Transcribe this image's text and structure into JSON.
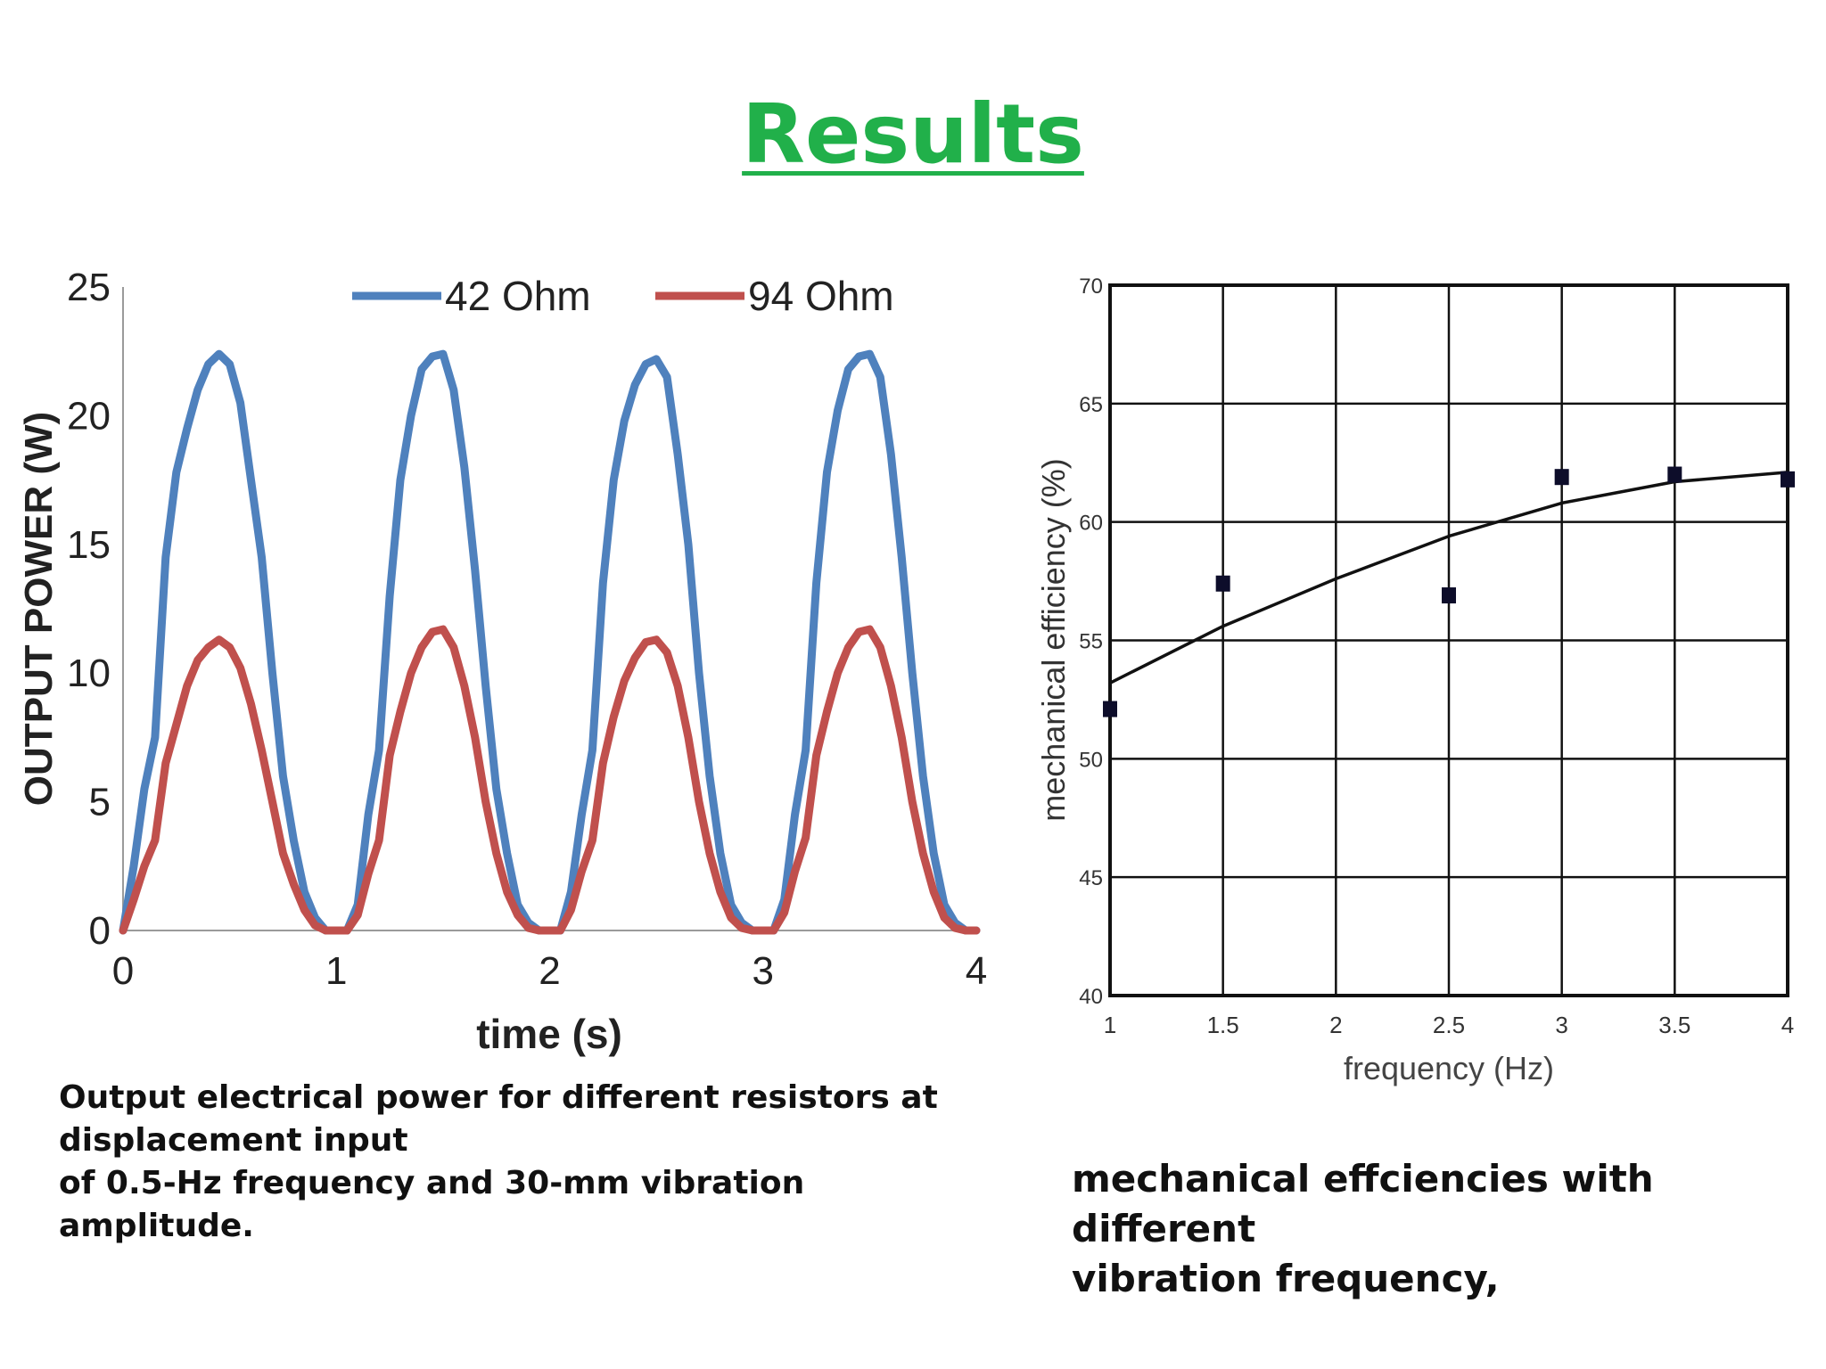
{
  "title": "Results",
  "captions": {
    "left": [
      "Output electrical power for different resistors at",
      "displacement input",
      "of 0.5-Hz frequency and 30-mm vibration",
      "amplitude."
    ],
    "right": [
      "mechanical effciencies with different",
      "vibration frequency,"
    ]
  },
  "chart_data": [
    {
      "type": "line",
      "title": "",
      "xlabel": "time (s)",
      "ylabel": "OUTPUT POWER (W)",
      "xlim": [
        0,
        4
      ],
      "ylim": [
        0,
        25
      ],
      "xticks": [
        "0",
        "1",
        "2",
        "3",
        "4"
      ],
      "yticks": [
        "0",
        "5",
        "10",
        "15",
        "20",
        "25"
      ],
      "grid": false,
      "legend": "top",
      "x": [
        0,
        0.05,
        0.1,
        0.15,
        0.2,
        0.25,
        0.3,
        0.35,
        0.4,
        0.45,
        0.5,
        0.55,
        0.6,
        0.65,
        0.7,
        0.75,
        0.8,
        0.85,
        0.9,
        0.95,
        1.0,
        1.05,
        1.1,
        1.15,
        1.2,
        1.25,
        1.3,
        1.35,
        1.4,
        1.45,
        1.5,
        1.55,
        1.6,
        1.65,
        1.7,
        1.75,
        1.8,
        1.85,
        1.9,
        1.95,
        2.0,
        2.05,
        2.1,
        2.15,
        2.2,
        2.25,
        2.3,
        2.35,
        2.4,
        2.45,
        2.5,
        2.55,
        2.6,
        2.65,
        2.7,
        2.75,
        2.8,
        2.85,
        2.9,
        2.95,
        3.0,
        3.05,
        3.1,
        3.15,
        3.2,
        3.25,
        3.3,
        3.35,
        3.4,
        3.45,
        3.5,
        3.55,
        3.6,
        3.65,
        3.7,
        3.75,
        3.8,
        3.85,
        3.9,
        3.95,
        4.0
      ],
      "series": [
        {
          "name": "42 Ohm",
          "color": "#4f81bd",
          "values": [
            0.0,
            2.5,
            5.5,
            7.5,
            14.5,
            17.8,
            19.5,
            21.0,
            22.0,
            22.4,
            22.0,
            20.5,
            17.5,
            14.5,
            10.0,
            6.0,
            3.5,
            1.5,
            0.5,
            0.0,
            0.0,
            0.0,
            1.0,
            4.5,
            7.0,
            13.0,
            17.5,
            20.0,
            21.8,
            22.3,
            22.4,
            21.0,
            18.0,
            14.0,
            9.5,
            5.5,
            3.0,
            1.0,
            0.3,
            0.0,
            0.0,
            0.0,
            1.5,
            4.5,
            7.0,
            13.5,
            17.5,
            19.8,
            21.2,
            22.0,
            22.2,
            21.5,
            18.5,
            15.0,
            10.0,
            6.0,
            3.0,
            1.0,
            0.3,
            0.0,
            0.0,
            0.0,
            1.2,
            4.5,
            7.0,
            13.5,
            17.8,
            20.2,
            21.8,
            22.3,
            22.4,
            21.5,
            18.5,
            14.5,
            10.0,
            6.0,
            3.0,
            1.0,
            0.3,
            0.0,
            0.0
          ]
        },
        {
          "name": "94 Ohm",
          "color": "#c0504d",
          "values": [
            0.0,
            1.2,
            2.5,
            3.5,
            6.5,
            8.0,
            9.5,
            10.5,
            11.0,
            11.3,
            11.0,
            10.2,
            8.8,
            7.0,
            5.0,
            3.0,
            1.8,
            0.8,
            0.2,
            0.0,
            0.0,
            0.0,
            0.6,
            2.2,
            3.5,
            6.8,
            8.5,
            10.0,
            11.0,
            11.6,
            11.7,
            11.0,
            9.5,
            7.5,
            5.0,
            3.0,
            1.5,
            0.6,
            0.1,
            0.0,
            0.0,
            0.0,
            0.8,
            2.3,
            3.5,
            6.5,
            8.3,
            9.7,
            10.6,
            11.2,
            11.3,
            10.8,
            9.5,
            7.5,
            5.0,
            3.0,
            1.5,
            0.5,
            0.1,
            0.0,
            0.0,
            0.0,
            0.7,
            2.3,
            3.6,
            6.8,
            8.5,
            10.0,
            11.0,
            11.6,
            11.7,
            11.0,
            9.5,
            7.5,
            5.0,
            3.0,
            1.5,
            0.5,
            0.1,
            0.0,
            0.0
          ]
        }
      ]
    },
    {
      "type": "scatter",
      "title": "",
      "xlabel": "frequency (Hz)",
      "ylabel": "mechanical efficiency (%)",
      "xlim": [
        1,
        4
      ],
      "ylim": [
        40,
        70
      ],
      "xticks": [
        "1",
        "1.5",
        "2",
        "2.5",
        "3",
        "3.5",
        "4"
      ],
      "yticks": [
        "40",
        "45",
        "50",
        "55",
        "60",
        "65",
        "70"
      ],
      "grid": true,
      "legend": "none",
      "points": {
        "x": [
          1,
          1.5,
          2.5,
          3,
          3.5,
          4
        ],
        "y": [
          52.1,
          57.4,
          56.9,
          61.9,
          62.0,
          61.8
        ]
      },
      "fit": {
        "x": [
          1,
          1.5,
          2,
          2.5,
          3,
          3.5,
          4
        ],
        "y": [
          53.2,
          55.6,
          57.6,
          59.4,
          60.8,
          61.7,
          62.1
        ]
      },
      "color": "#111111"
    }
  ]
}
